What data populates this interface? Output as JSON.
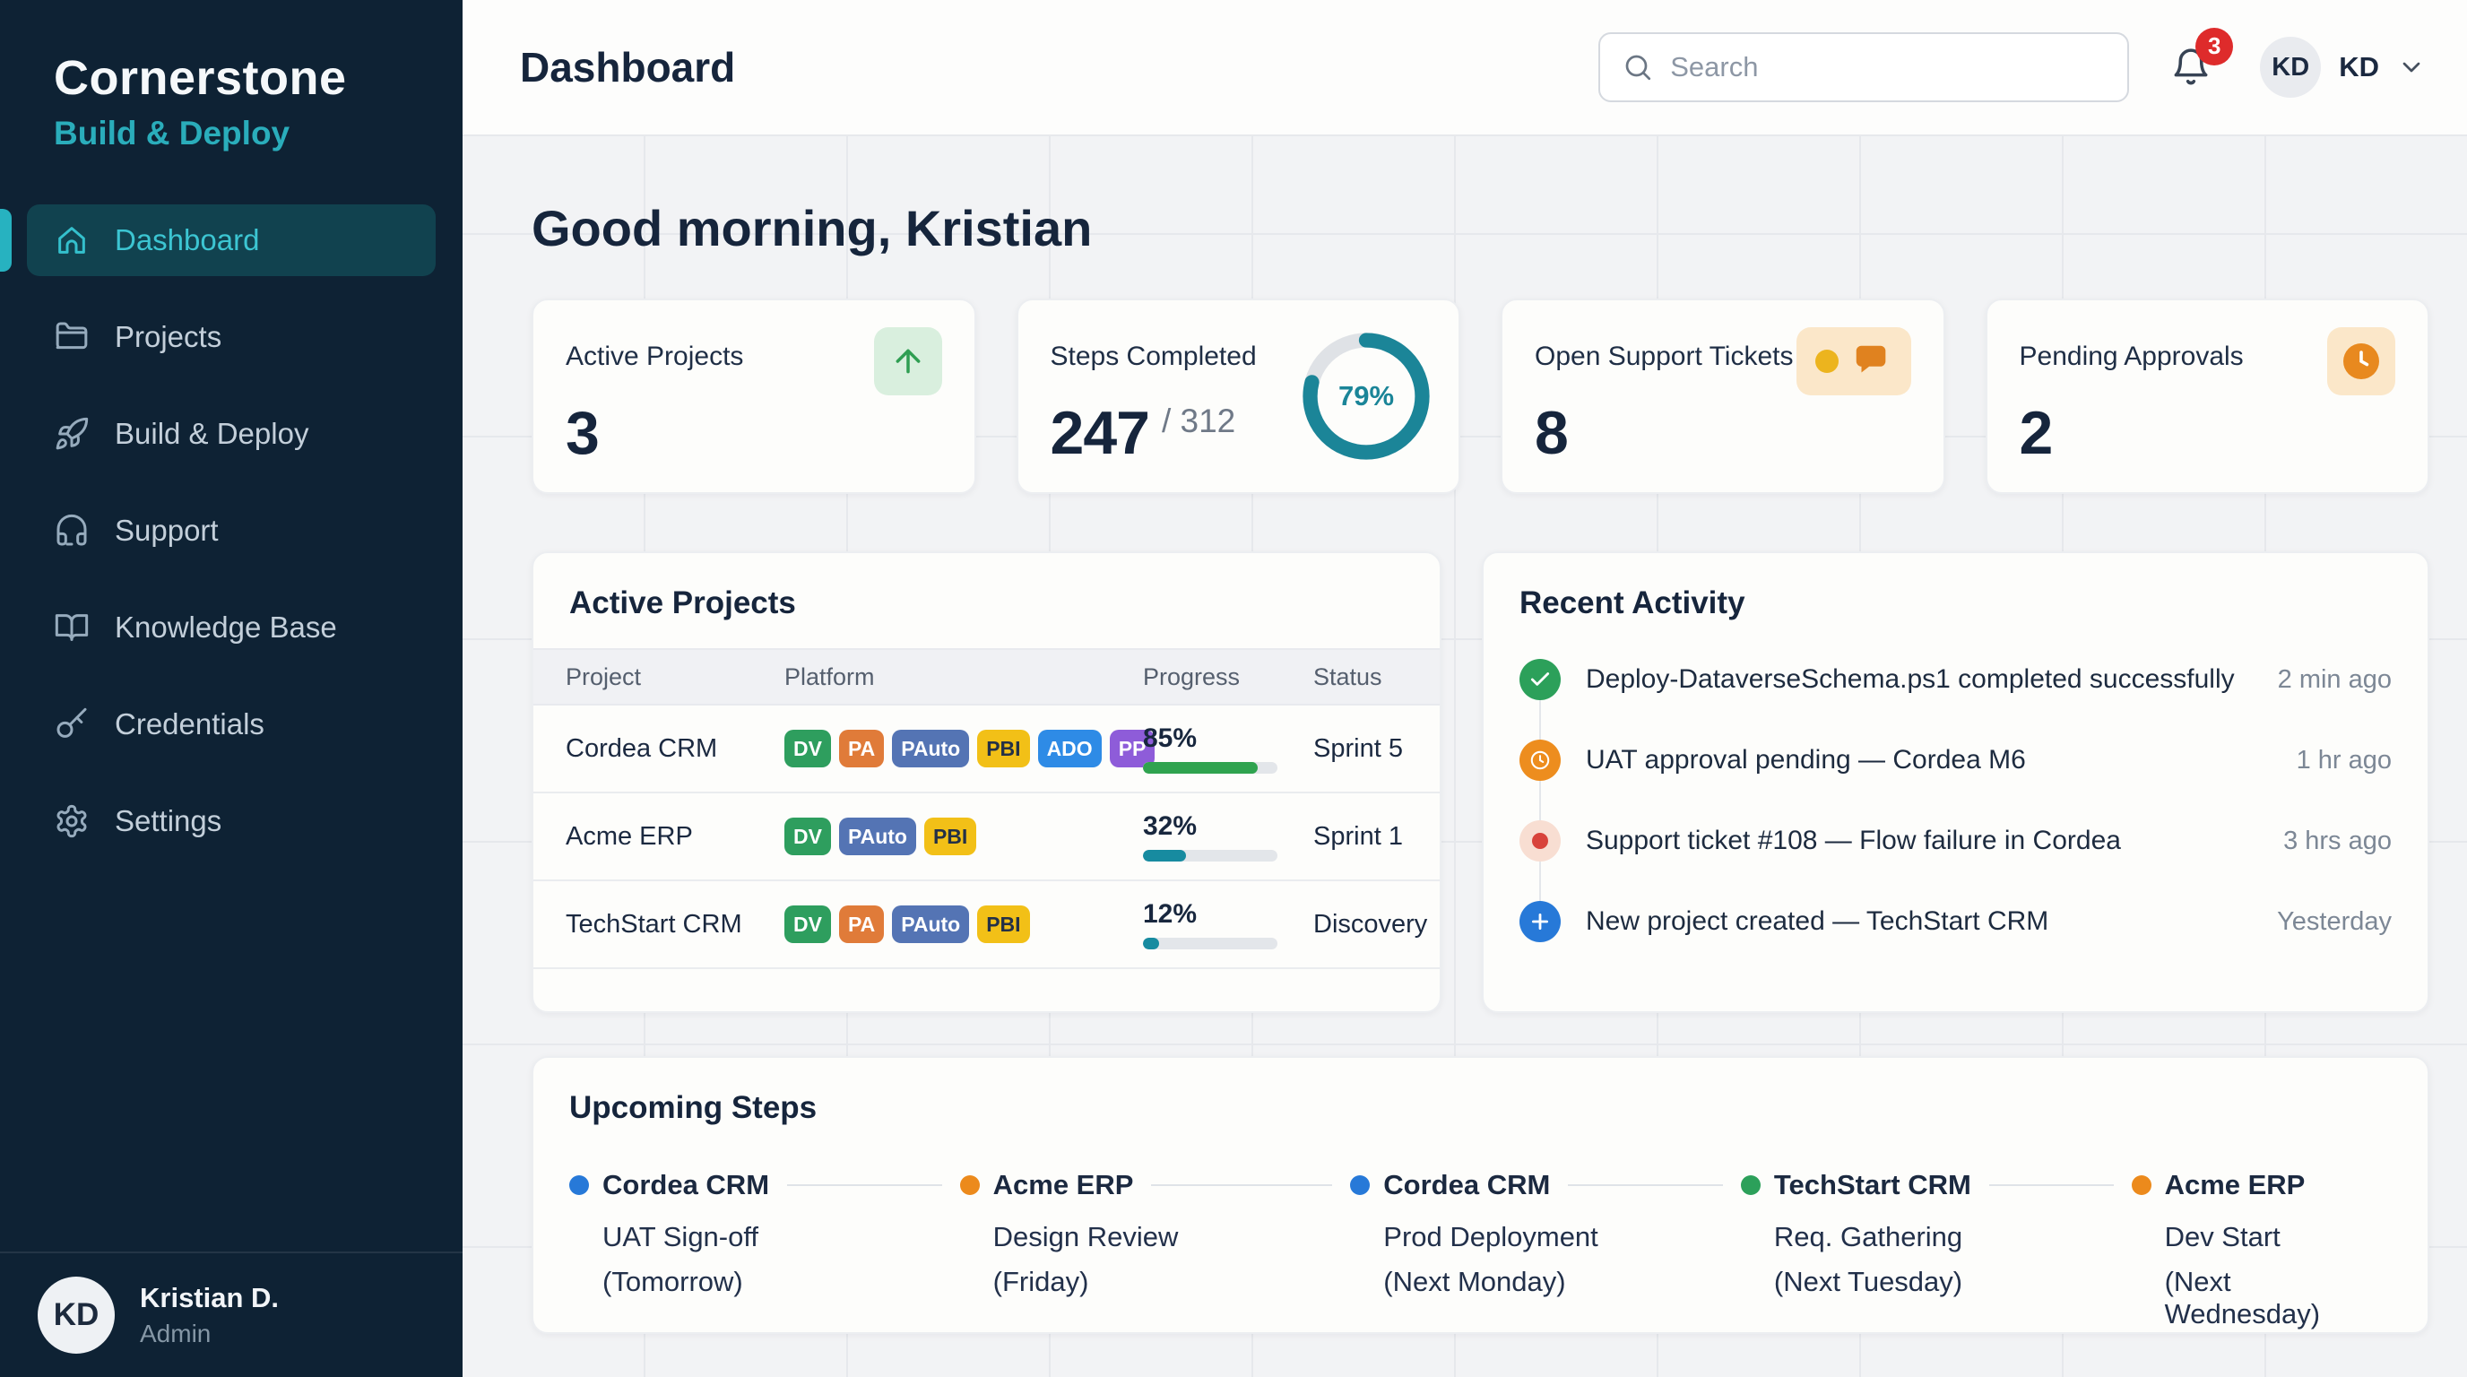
{
  "theme": {
    "accent": "#2aadbb",
    "sidebar_bg": "#0e2234",
    "donut": "#1b8598",
    "badge_red": "#de2b2b"
  },
  "sidebar": {
    "brand": {
      "title": "Cornerstone",
      "subtitle": "Build & Deploy"
    },
    "nav": [
      {
        "id": "dashboard",
        "label": "Dashboard",
        "icon": "home",
        "active": true
      },
      {
        "id": "projects",
        "label": "Projects",
        "icon": "folder",
        "active": false
      },
      {
        "id": "build-deploy",
        "label": "Build & Deploy",
        "icon": "rocket",
        "active": false
      },
      {
        "id": "support",
        "label": "Support",
        "icon": "headset",
        "active": false
      },
      {
        "id": "knowledge-base",
        "label": "Knowledge Base",
        "icon": "book",
        "active": false
      },
      {
        "id": "credentials",
        "label": "Credentials",
        "icon": "key",
        "active": false
      },
      {
        "id": "settings",
        "label": "Settings",
        "icon": "gear",
        "active": false
      }
    ],
    "user": {
      "initials": "KD",
      "name": "Kristian D.",
      "role": "Admin"
    }
  },
  "header": {
    "title": "Dashboard",
    "search_placeholder": "Search",
    "notification_count": "3",
    "avatar_initials": "KD",
    "user_short": "KD"
  },
  "greeting": "Good morning, Kristian",
  "stats": [
    {
      "label": "Active Projects",
      "value": "3",
      "icon": "trend-up"
    },
    {
      "label": "Steps Completed",
      "value": "247",
      "total": "/ 312",
      "percent": 79,
      "percent_label": "79%"
    },
    {
      "label": "Open Support Tickets",
      "value": "8",
      "icon": "chat"
    },
    {
      "label": "Pending Approvals",
      "value": "2",
      "icon": "clock"
    }
  ],
  "active_projects": {
    "title": "Active Projects",
    "columns": [
      "Project",
      "Platform",
      "Progress",
      "Status"
    ],
    "platform_badges": {
      "DV": {
        "bg": "#2e9e5e",
        "fg": "#ffffff"
      },
      "PA": {
        "bg": "#e07b39",
        "fg": "#ffffff"
      },
      "PAuto": {
        "bg": "#5474b4",
        "fg": "#ffffff"
      },
      "PBI": {
        "bg": "#f2c017",
        "fg": "#233047"
      },
      "ADO": {
        "bg": "#2e8be6",
        "fg": "#ffffff"
      },
      "PP": {
        "bg": "#8e5cd9",
        "fg": "#ffffff"
      }
    },
    "rows": [
      {
        "project": "Cordea CRM",
        "platforms": [
          "DV",
          "PA",
          "PAuto",
          "PBI",
          "ADO",
          "PP"
        ],
        "progress": 85,
        "progress_label": "85%",
        "status": "Sprint 5",
        "bar_color": "#2fa34f"
      },
      {
        "project": "Acme ERP",
        "platforms": [
          "DV",
          "PAuto",
          "PBI"
        ],
        "progress": 32,
        "progress_label": "32%",
        "status": "Sprint 1",
        "bar_color": "#178ba0"
      },
      {
        "project": "TechStart CRM",
        "platforms": [
          "DV",
          "PA",
          "PAuto",
          "PBI"
        ],
        "progress": 12,
        "progress_label": "12%",
        "status": "Discovery",
        "bar_color": "#178ba0"
      }
    ]
  },
  "recent_activity": {
    "title": "Recent Activity",
    "items": [
      {
        "icon": "check",
        "color": "#2ca05a",
        "text": "Deploy-DataverseSchema.ps1 completed successfully",
        "time": "2 min ago"
      },
      {
        "icon": "clock",
        "color": "#ed8d1e",
        "text": "UAT approval pending — Cordea M6",
        "time": "1 hr ago"
      },
      {
        "icon": "alert-dot",
        "color": "#f8ded2",
        "dot": "#d8433b",
        "text": "Support ticket #108 — Flow failure in Cordea",
        "time": "3 hrs ago"
      },
      {
        "icon": "plus",
        "color": "#2779d8",
        "text": "New project created — TechStart CRM",
        "time": "Yesterday"
      }
    ]
  },
  "upcoming_steps": {
    "title": "Upcoming Steps",
    "items": [
      {
        "project": "Cordea CRM",
        "step": "UAT Sign-off",
        "date": "(Tomorrow)",
        "dot_color": "#2779d8"
      },
      {
        "project": "Acme ERP",
        "step": "Design Review",
        "date": "(Friday)",
        "dot_color": "#ec8a1c"
      },
      {
        "project": "Cordea CRM",
        "step": "Prod Deployment",
        "date": "(Next Monday)",
        "dot_color": "#2779d8"
      },
      {
        "project": "TechStart CRM",
        "step": "Req. Gathering",
        "date": "(Next Tuesday)",
        "dot_color": "#2ca05a"
      },
      {
        "project": "Acme ERP",
        "step": "Dev Start",
        "date": "(Next Wednesday)",
        "dot_color": "#ec8a1c"
      }
    ]
  }
}
